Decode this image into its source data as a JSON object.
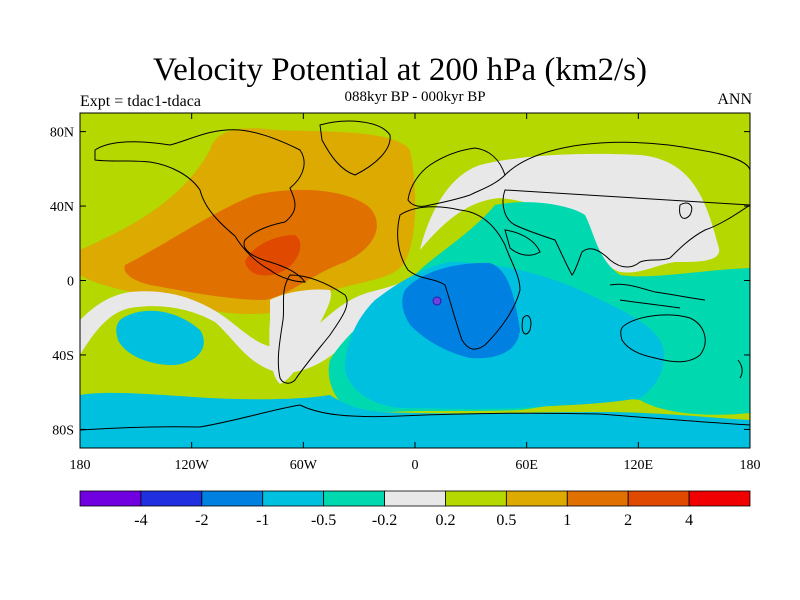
{
  "title": "Velocity Potential at 200 hPa (km2/s)",
  "subtitle": "088kyr BP - 000kyr BP",
  "experiment": "Expt = tdac1-tdaca",
  "season": "ANN",
  "map": {
    "projection": "cylindrical-equidistant",
    "lon_range": [
      -180,
      180
    ],
    "lat_range": [
      -90,
      90
    ],
    "lon_ticks": [
      {
        "value": -180,
        "label": "180"
      },
      {
        "value": -120,
        "label": "120W"
      },
      {
        "value": -60,
        "label": "60W"
      },
      {
        "value": 0,
        "label": "0"
      },
      {
        "value": 60,
        "label": "60E"
      },
      {
        "value": 120,
        "label": "120E"
      },
      {
        "value": 180,
        "label": "180"
      }
    ],
    "lat_ticks": [
      {
        "value": 80,
        "label": "80N"
      },
      {
        "value": 40,
        "label": "40N"
      },
      {
        "value": 0,
        "label": "0"
      },
      {
        "value": -40,
        "label": "40S"
      },
      {
        "value": -80,
        "label": "80S"
      }
    ],
    "colors": {
      "green": "#b4d800",
      "orange": "#dcaa00",
      "darkorange": "#e07000",
      "redorange": "#e04a00",
      "gray": "#e8e8e8",
      "teal": "#00d8b0",
      "cyan": "#00c0e0",
      "blue": "#0080e0",
      "coast": "#000000"
    }
  },
  "colorbar": {
    "colors": [
      "#7000e0",
      "#2030e0",
      "#0080e0",
      "#00c0e0",
      "#00d8b0",
      "#e8e8e8",
      "#b4d800",
      "#dcaa00",
      "#e07000",
      "#e04a00",
      "#f00000"
    ],
    "labels": [
      "-4",
      "-2",
      "-1",
      "-0.5",
      "-0.2",
      "0.2",
      "0.5",
      "1",
      "2",
      "4"
    ]
  }
}
